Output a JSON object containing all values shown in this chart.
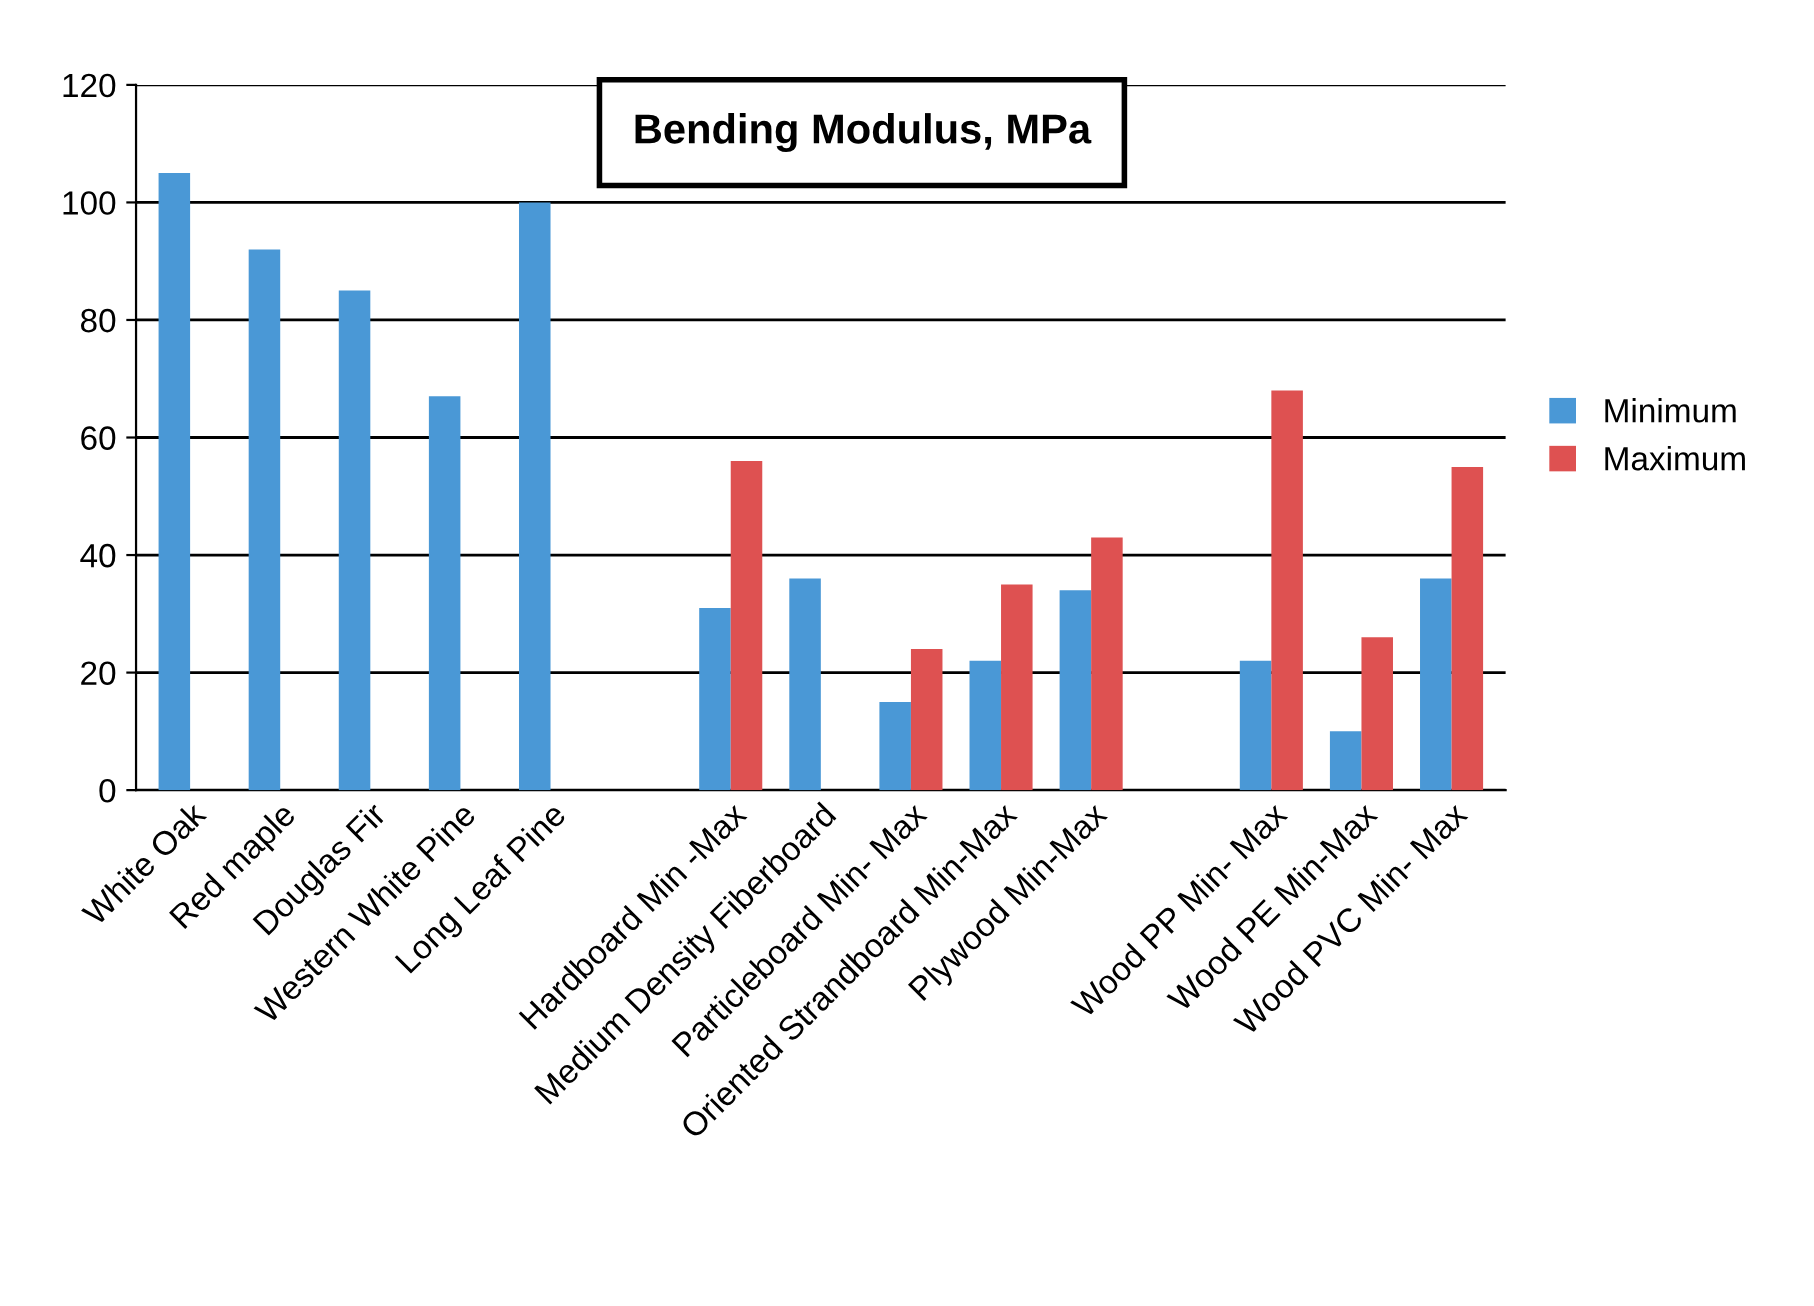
{
  "chart_data": {
    "type": "bar",
    "title": "Bending Modulus, MPa",
    "categories": [
      "White Oak",
      "Red maple",
      "Douglas Fir",
      "Western White Pine",
      "Long Leaf Pine",
      null,
      "Hardboard Min -Max",
      "Medium Density Fiberboard",
      "Particleboard Min- Max",
      "Oriented Strandboard Min-Max",
      "Plywood Min-Max",
      null,
      "Wood PP Min- Max",
      "Wood PE Min-Max",
      "Wood PVC Min- Max"
    ],
    "series": [
      {
        "name": "Minimum",
        "color": "#4a98d6",
        "values": [
          105,
          92,
          85,
          67,
          100,
          null,
          31,
          36,
          15,
          22,
          34,
          null,
          22,
          10,
          36
        ]
      },
      {
        "name": "Maximum",
        "color": "#de5151",
        "values": [
          null,
          null,
          null,
          null,
          null,
          null,
          56,
          null,
          24,
          35,
          43,
          null,
          68,
          26,
          55
        ]
      }
    ],
    "ylim": [
      0,
      120
    ],
    "yticks": [
      0,
      20,
      40,
      60,
      80,
      100,
      120
    ],
    "grid": "y",
    "legend": "right"
  }
}
